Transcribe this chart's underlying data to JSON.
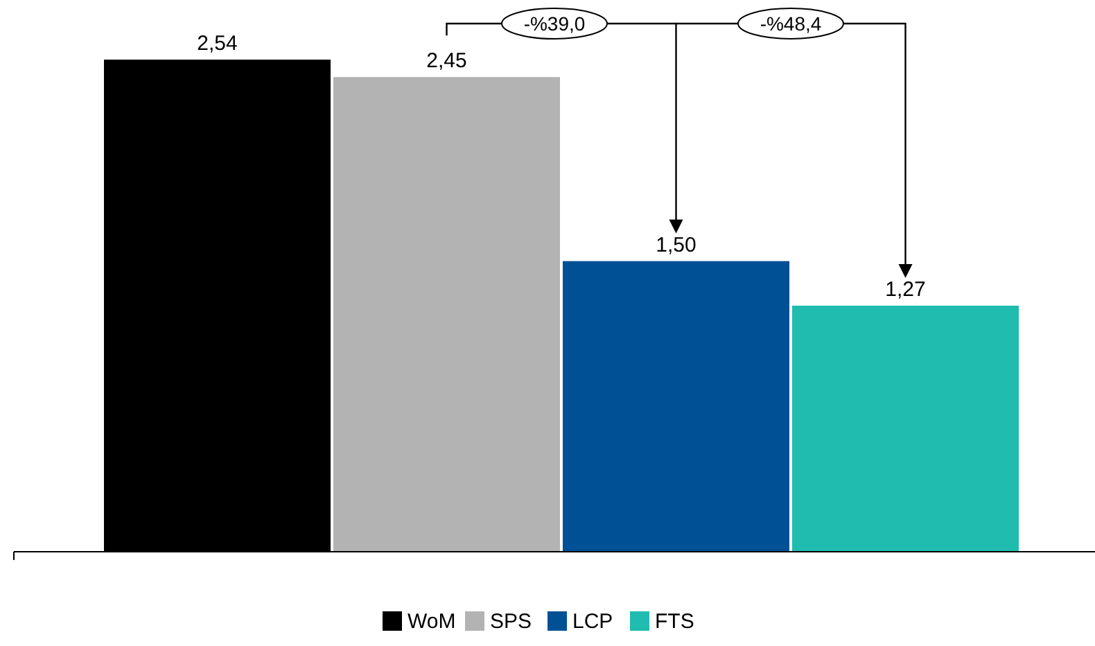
{
  "chart_data": {
    "type": "bar",
    "categories": [
      null
    ],
    "series": [
      {
        "name": "WoM",
        "color": "#000000",
        "values": [
          2.54
        ],
        "value_labels": [
          "2,54"
        ]
      },
      {
        "name": "SPS",
        "color": "#b3b3b3",
        "values": [
          2.45
        ],
        "value_labels": [
          "2,45"
        ]
      },
      {
        "name": "LCP",
        "color": "#005096",
        "values": [
          1.5
        ],
        "value_labels": [
          "1,50"
        ]
      },
      {
        "name": "FTS",
        "color": "#20bcb0",
        "values": [
          1.27
        ],
        "value_labels": [
          "1,27"
        ]
      }
    ],
    "annotations": [
      "-%39,0",
      "-%48,4"
    ],
    "legend": "bottom"
  }
}
